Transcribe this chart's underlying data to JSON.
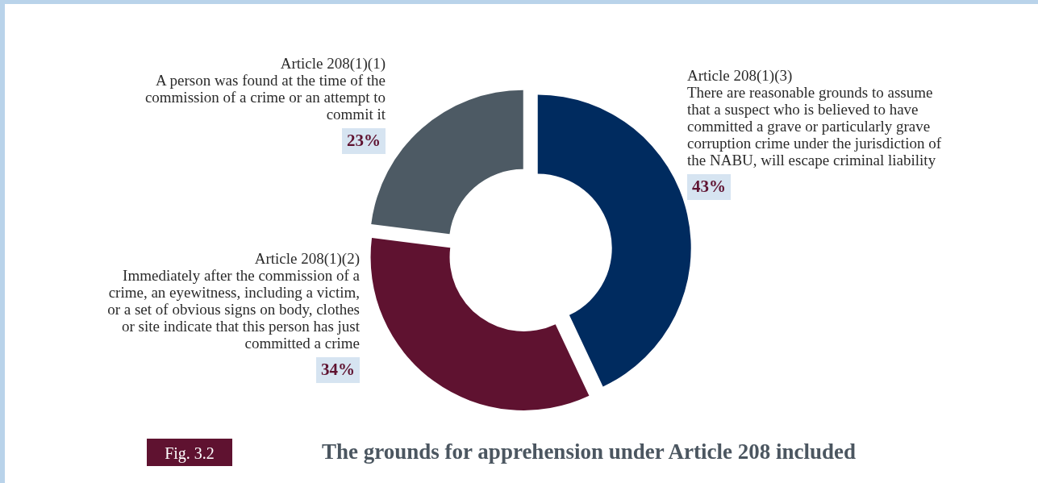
{
  "chart_data": {
    "type": "donut",
    "title": "The grounds for apprehension under Article 208 included",
    "categories": [
      "Article 208(1)(3)\nThere are reasonable grounds to assume\nthat a suspect who is believed to have\ncommitted a grave or particularly grave\ncorruption crime under the jurisdiction of\nthe NABU, will escape criminal liability",
      "Article 208(1)(2)\nImmediately after the commission of a\ncrime, an eyewitness, including a victim,\nor a set of obvious signs on body, clothes\nor site indicate that this person has just\ncommitted a crime",
      "Article 208(1)(1)\nA person was found at the time of the\ncommission of a crime or an attempt to\ncommit it"
    ],
    "values": [
      43,
      34,
      23
    ],
    "colors": [
      "#002b5f",
      "#5f1230",
      "#4d5a64"
    ],
    "value_labels": [
      "43%",
      "34%",
      "23%"
    ],
    "annotations": [
      "Fig. 3.2"
    ]
  }
}
